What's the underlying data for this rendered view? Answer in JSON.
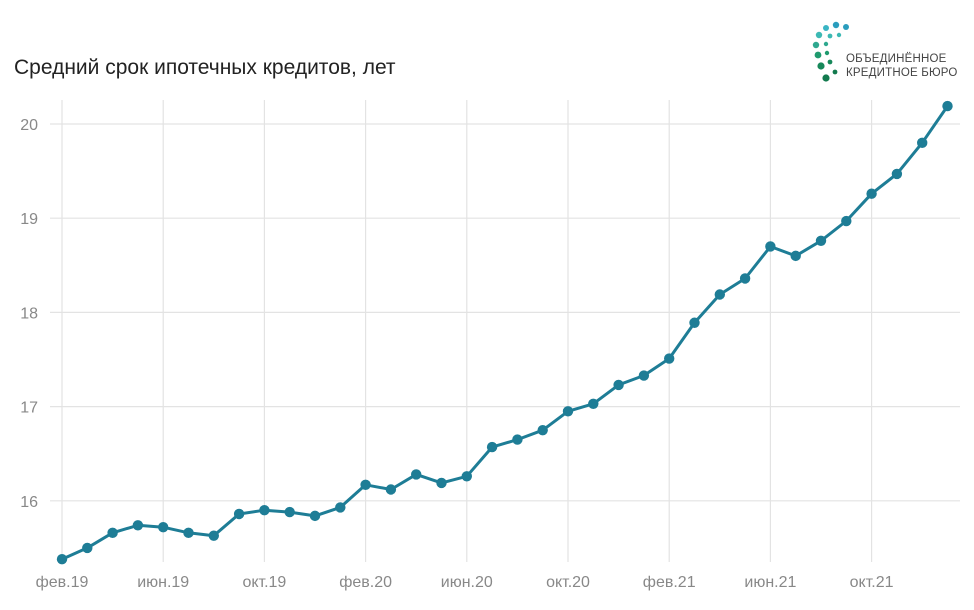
{
  "title": "Средний срок ипотечных кредитов, лет",
  "logo": {
    "line1": "ОБЪЕДИНЁННОЕ",
    "line2": "КРЕДИТНОЕ БЮРО"
  },
  "chart_data": {
    "type": "line",
    "title": "Средний срок ипотечных кредитов, лет",
    "xlabel": "",
    "ylabel": "",
    "ylim": [
      15.4,
      20.2
    ],
    "yticks": [
      16,
      17,
      18,
      19,
      20
    ],
    "xtick_labels": [
      "фев.19",
      "июн.19",
      "окт.19",
      "фев.20",
      "июн.20",
      "окт.20",
      "фев.21",
      "июн.21",
      "окт.21"
    ],
    "xtick_indices": [
      0,
      4,
      8,
      12,
      16,
      20,
      24,
      28,
      32
    ],
    "grid": true,
    "series_color": "#1e7d96",
    "series": [
      {
        "name": "Средний срок ипотечных кредитов, лет",
        "values": [
          15.38,
          15.5,
          15.66,
          15.74,
          15.72,
          15.66,
          15.63,
          15.86,
          15.9,
          15.88,
          15.84,
          15.93,
          16.17,
          16.12,
          16.28,
          16.19,
          16.26,
          16.57,
          16.65,
          16.75,
          16.95,
          17.03,
          17.23,
          17.33,
          17.51,
          17.89,
          18.19,
          18.36,
          18.7,
          18.6,
          18.76,
          18.97,
          19.26,
          19.47,
          19.8,
          20.19
        ]
      }
    ]
  }
}
